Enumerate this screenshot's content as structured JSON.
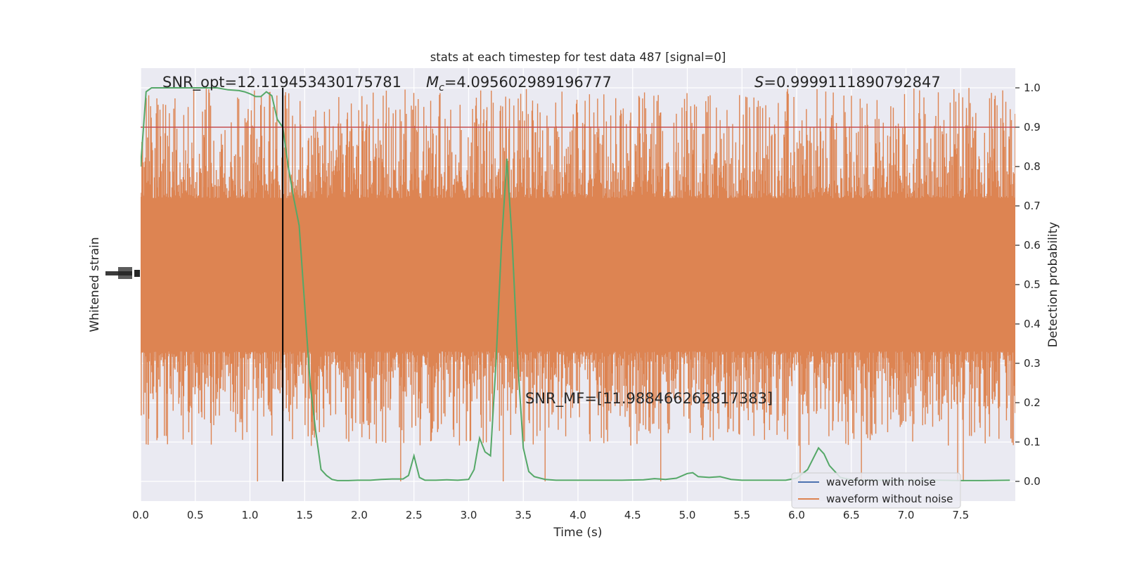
{
  "chart_data": {
    "type": "line",
    "title": "stats at each timestep for test data 487 [signal=0]",
    "xlabel": "Time (s)",
    "ylabel_left": "Whitened strain",
    "ylabel_right": "Detection probability",
    "xlim": [
      0.0,
      8.0
    ],
    "ylim_right": [
      -0.05,
      1.05
    ],
    "x_ticks": [
      "0.0",
      "0.5",
      "1.0",
      "1.5",
      "2.0",
      "2.5",
      "3.0",
      "3.5",
      "4.0",
      "4.5",
      "5.0",
      "5.5",
      "6.0",
      "6.5",
      "7.0",
      "7.5"
    ],
    "y_right_ticks": [
      "0.0",
      "0.1",
      "0.2",
      "0.3",
      "0.4",
      "0.5",
      "0.6",
      "0.7",
      "0.8",
      "0.9",
      "1.0"
    ],
    "grid": true,
    "legend_position": "lower-right",
    "colors": {
      "plot_bg": "#eaeaf2",
      "grid": "#ffffff",
      "with_noise": "#4c72b0",
      "without_noise": "#dd8452",
      "probability": "#55a868",
      "threshold": "#c44e52",
      "marker": "#000000"
    },
    "annotations": {
      "snr_opt": "SNR_opt=12.119453430175781",
      "mc_symbol": "M",
      "mc_sub": "c",
      "mc_value": "=4.095602989196777",
      "s_symbol": "S",
      "s_value": "=0.9999111890792847",
      "snr_mf": "SNR_MF=[11.988466262817383]"
    },
    "threshold": 0.9,
    "marker_time": 1.3,
    "strain_band": {
      "core_low": 0.33,
      "core_high": 0.72,
      "peak_low": 0.09,
      "peak_high": 1.0,
      "samples": 1400
    },
    "series": [
      {
        "name": "waveform with noise",
        "values": []
      },
      {
        "name": "waveform without noise",
        "values": []
      },
      {
        "values": [
          [
            0.0,
            0.8
          ],
          [
            0.05,
            0.99
          ],
          [
            0.1,
            1.0
          ],
          [
            0.2,
            1.0
          ],
          [
            0.3,
            1.0
          ],
          [
            0.4,
            1.0
          ],
          [
            0.5,
            1.0
          ],
          [
            0.6,
            1.0
          ],
          [
            0.7,
            1.0
          ],
          [
            0.8,
            0.995
          ],
          [
            0.9,
            0.993
          ],
          [
            0.95,
            0.99
          ],
          [
            1.0,
            0.985
          ],
          [
            1.05,
            0.978
          ],
          [
            1.1,
            0.978
          ],
          [
            1.15,
            0.99
          ],
          [
            1.2,
            0.98
          ],
          [
            1.25,
            0.92
          ],
          [
            1.3,
            0.9
          ],
          [
            1.35,
            0.8
          ],
          [
            1.4,
            0.72
          ],
          [
            1.45,
            0.65
          ],
          [
            1.5,
            0.45
          ],
          [
            1.55,
            0.25
          ],
          [
            1.6,
            0.13
          ],
          [
            1.65,
            0.03
          ],
          [
            1.7,
            0.015
          ],
          [
            1.75,
            0.005
          ],
          [
            1.8,
            0.002
          ],
          [
            1.9,
            0.002
          ],
          [
            2.0,
            0.003
          ],
          [
            2.1,
            0.003
          ],
          [
            2.2,
            0.005
          ],
          [
            2.3,
            0.006
          ],
          [
            2.4,
            0.006
          ],
          [
            2.45,
            0.015
          ],
          [
            2.5,
            0.065
          ],
          [
            2.55,
            0.01
          ],
          [
            2.6,
            0.003
          ],
          [
            2.7,
            0.003
          ],
          [
            2.8,
            0.004
          ],
          [
            2.9,
            0.003
          ],
          [
            3.0,
            0.005
          ],
          [
            3.05,
            0.03
          ],
          [
            3.1,
            0.11
          ],
          [
            3.15,
            0.075
          ],
          [
            3.2,
            0.065
          ],
          [
            3.25,
            0.3
          ],
          [
            3.3,
            0.6
          ],
          [
            3.35,
            0.82
          ],
          [
            3.4,
            0.6
          ],
          [
            3.45,
            0.3
          ],
          [
            3.5,
            0.085
          ],
          [
            3.55,
            0.025
          ],
          [
            3.6,
            0.012
          ],
          [
            3.7,
            0.005
          ],
          [
            3.8,
            0.003
          ],
          [
            4.0,
            0.003
          ],
          [
            4.2,
            0.003
          ],
          [
            4.4,
            0.003
          ],
          [
            4.6,
            0.004
          ],
          [
            4.7,
            0.007
          ],
          [
            4.8,
            0.005
          ],
          [
            4.9,
            0.008
          ],
          [
            5.0,
            0.02
          ],
          [
            5.05,
            0.022
          ],
          [
            5.1,
            0.012
          ],
          [
            5.2,
            0.01
          ],
          [
            5.3,
            0.012
          ],
          [
            5.4,
            0.005
          ],
          [
            5.5,
            0.003
          ],
          [
            5.7,
            0.003
          ],
          [
            5.9,
            0.003
          ],
          [
            6.0,
            0.008
          ],
          [
            6.1,
            0.03
          ],
          [
            6.2,
            0.085
          ],
          [
            6.25,
            0.07
          ],
          [
            6.3,
            0.04
          ],
          [
            6.4,
            0.01
          ],
          [
            6.5,
            0.004
          ],
          [
            6.7,
            0.003
          ],
          [
            6.9,
            0.003
          ],
          [
            7.1,
            0.003
          ],
          [
            7.3,
            0.003
          ],
          [
            7.5,
            0.002
          ],
          [
            7.7,
            0.002
          ],
          [
            7.95,
            0.003
          ]
        ]
      }
    ]
  }
}
